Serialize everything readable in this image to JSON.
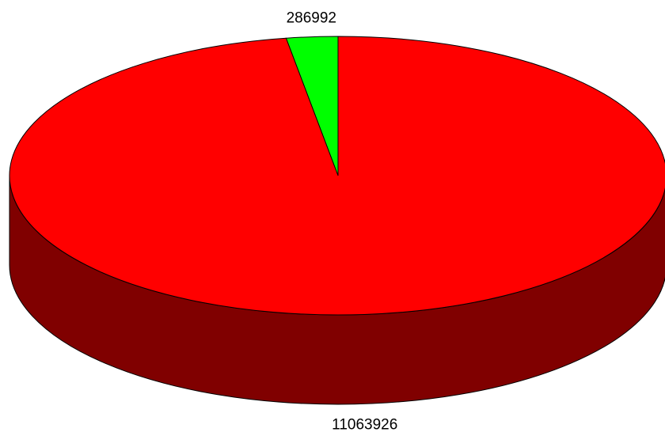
{
  "chart_data": {
    "type": "pie",
    "style": "3d",
    "slices": [
      {
        "value": 286992,
        "label": "286992",
        "color": "#00ff00",
        "side_color": "#008000"
      },
      {
        "value": 11063926,
        "label": "11063926",
        "color": "#ff0000",
        "side_color": "#800000"
      }
    ],
    "start_angle": "12 o'clock",
    "direction": "counterclockwise",
    "legend": "none",
    "title": ""
  }
}
